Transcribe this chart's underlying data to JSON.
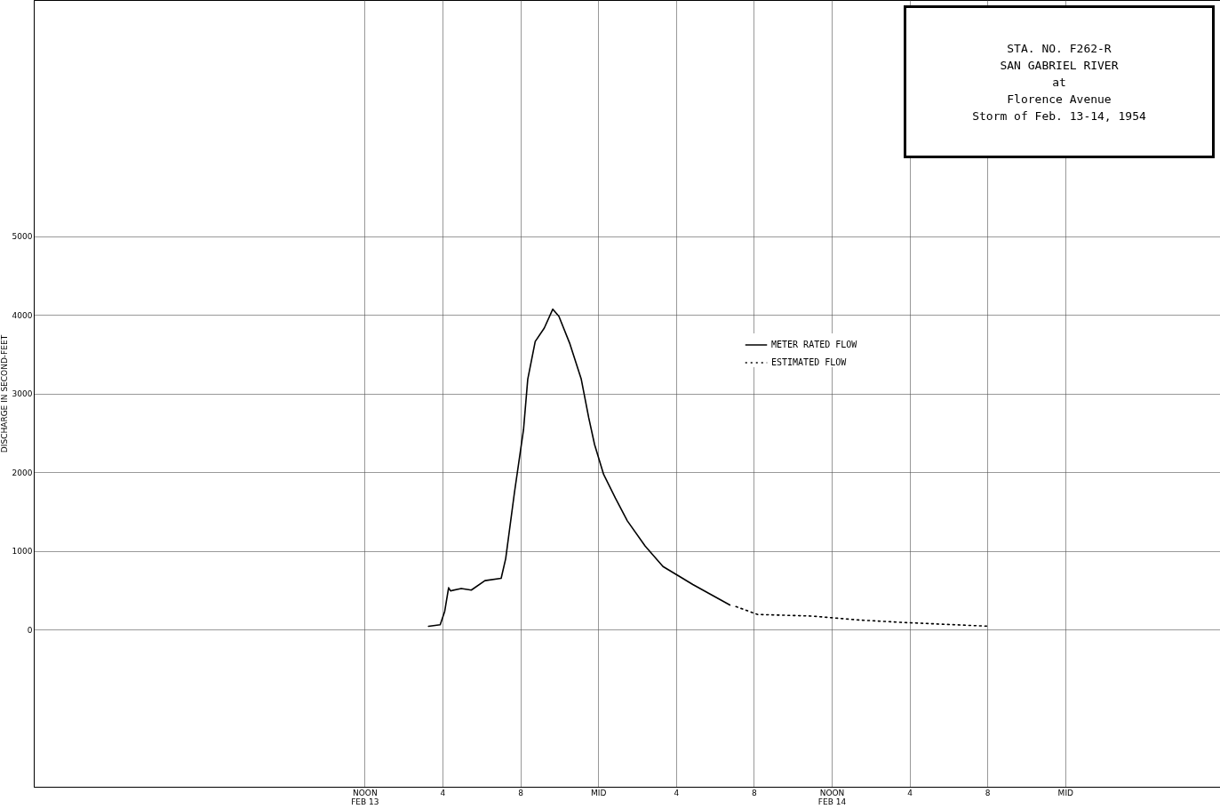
{
  "chart_data": {
    "type": "line",
    "title": "STA. NO. F262-R\nSAN GABRIEL RIVER\nat\nFlorence Avenue",
    "subtitle": "Storm of Feb. 13-14, 1954",
    "ylabel": "DISCHARGE IN SECOND-FEET",
    "xlim": [
      "1954-02-12T19:00",
      "1954-02-15T08:00"
    ],
    "xticks": [
      {
        "value": "1954-02-13T12:00",
        "label": "NOON\nFEB 13"
      },
      {
        "value": "1954-02-13T16:00",
        "label": "4"
      },
      {
        "value": "1954-02-13T20:00",
        "label": "8"
      },
      {
        "value": "1954-02-14T00:00",
        "label": "MID"
      },
      {
        "value": "1954-02-14T04:00",
        "label": "4"
      },
      {
        "value": "1954-02-14T08:00",
        "label": "8"
      },
      {
        "value": "1954-02-14T12:00",
        "label": "NOON\nFEB 14"
      },
      {
        "value": "1954-02-14T16:00",
        "label": "4"
      },
      {
        "value": "1954-02-14T20:00",
        "label": "8"
      },
      {
        "value": "1954-02-15T00:00",
        "label": "MID"
      }
    ],
    "ylim": [
      -2000,
      8000
    ],
    "yticks": [
      0,
      1000,
      2000,
      3000,
      4000,
      5000
    ],
    "grid": true,
    "legend": "center",
    "series": [
      {
        "name": "METER RATED FLOW",
        "color": "#000000",
        "line_style": "solid",
        "x": [
          "1954-02-13T15:17",
          "1954-02-13T15:53",
          "1954-02-13T16:07",
          "1954-02-13T16:19",
          "1954-02-13T16:25",
          "1954-02-13T16:58",
          "1954-02-13T17:29",
          "1954-02-13T18:11",
          "1954-02-13T19:01",
          "1954-02-13T19:15",
          "1954-02-13T19:42",
          "1954-02-13T20:10",
          "1954-02-13T20:23",
          "1954-02-13T20:46",
          "1954-02-13T21:14",
          "1954-02-13T21:40",
          "1954-02-13T21:59",
          "1954-02-13T22:32",
          "1954-02-13T23:08",
          "1954-02-13T23:31",
          "1954-02-13T23:49",
          "1954-02-14T00:17",
          "1954-02-14T00:53",
          "1954-02-14T01:30",
          "1954-02-14T02:25",
          "1954-02-14T03:20",
          "1954-02-14T04:52",
          "1954-02-14T06:46"
        ],
        "values": [
          40,
          60,
          230,
          530,
          490,
          520,
          500,
          620,
          650,
          900,
          1740,
          2540,
          3180,
          3660,
          3830,
          4070,
          3980,
          3640,
          3180,
          2690,
          2350,
          1970,
          1670,
          1380,
          1060,
          800,
          570,
          310
        ]
      },
      {
        "name": "ESTIMATED FLOW",
        "color": "#000000",
        "line_style": "dotted",
        "x": [
          "1954-02-14T07:05",
          "1954-02-14T08:12",
          "1954-02-14T10:58",
          "1954-02-14T13:24",
          "1954-02-14T15:32",
          "1954-02-14T20:07"
        ],
        "values": [
          290,
          190,
          170,
          120,
          90,
          40
        ]
      }
    ]
  }
}
